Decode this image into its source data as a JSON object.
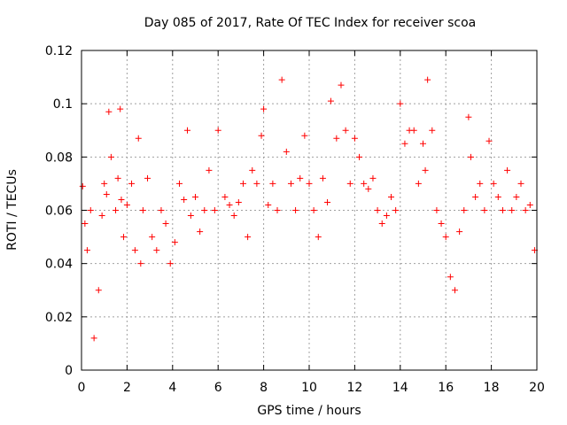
{
  "chart_data": {
    "type": "scatter",
    "title": "Day 085 of 2017, Rate Of TEC Index for receiver scoa",
    "xlabel": "GPS time / hours",
    "ylabel": "ROTI / TECUs",
    "xlim": [
      0,
      20
    ],
    "ylim": [
      0,
      0.12
    ],
    "xticks": [
      "0",
      "2",
      "4",
      "6",
      "8",
      "10",
      "12",
      "14",
      "16",
      "18",
      "20"
    ],
    "yticks": [
      "0",
      "0.02",
      "0.04",
      "0.06",
      "0.08",
      "0.1",
      "0.12"
    ],
    "grid": true,
    "marker": "+",
    "color": "#ff0000",
    "series": [
      {
        "x": [
          0.05,
          0.15,
          0.25,
          0.4,
          0.55,
          0.75,
          0.9,
          1.0,
          1.1,
          1.2,
          1.3,
          1.5,
          1.6,
          1.7,
          1.75,
          1.85,
          2.0,
          2.2,
          2.35,
          2.5,
          2.6,
          2.7,
          2.9,
          3.1,
          3.3,
          3.5,
          3.7,
          3.9,
          4.1,
          4.3,
          4.5,
          4.65,
          4.8,
          5.0,
          5.2,
          5.4,
          5.6,
          5.85,
          6.0,
          6.3,
          6.5,
          6.7,
          6.9,
          7.1,
          7.3,
          7.5,
          7.7,
          7.9,
          8.0,
          8.2,
          8.4,
          8.6,
          8.8,
          9.0,
          9.2,
          9.4,
          9.6,
          9.8,
          10.0,
          10.2,
          10.4,
          10.6,
          10.8,
          10.95,
          11.2,
          11.4,
          11.6,
          11.8,
          12.0,
          12.2,
          12.4,
          12.6,
          12.8,
          13.0,
          13.2,
          13.4,
          13.6,
          13.8,
          14.0,
          14.2,
          14.4,
          14.6,
          14.8,
          15.0,
          15.1,
          15.2,
          15.4,
          15.6,
          15.8,
          16.0,
          16.2,
          16.4,
          16.6,
          16.8,
          17.0,
          17.1,
          17.3,
          17.5,
          17.7,
          17.9,
          18.1,
          18.3,
          18.5,
          18.7,
          18.9,
          19.1,
          19.3,
          19.5,
          19.7,
          19.9
        ],
        "y": [
          0.069,
          0.055,
          0.045,
          0.06,
          0.012,
          0.03,
          0.058,
          0.07,
          0.066,
          0.097,
          0.08,
          0.06,
          0.072,
          0.098,
          0.064,
          0.05,
          0.062,
          0.07,
          0.045,
          0.087,
          0.04,
          0.06,
          0.072,
          0.05,
          0.045,
          0.06,
          0.055,
          0.04,
          0.048,
          0.07,
          0.064,
          0.09,
          0.058,
          0.065,
          0.052,
          0.06,
          0.075,
          0.06,
          0.09,
          0.065,
          0.062,
          0.058,
          0.063,
          0.07,
          0.05,
          0.075,
          0.07,
          0.088,
          0.098,
          0.062,
          0.07,
          0.06,
          0.109,
          0.082,
          0.07,
          0.06,
          0.072,
          0.088,
          0.07,
          0.06,
          0.05,
          0.072,
          0.063,
          0.101,
          0.087,
          0.107,
          0.09,
          0.07,
          0.087,
          0.08,
          0.07,
          0.068,
          0.072,
          0.06,
          0.055,
          0.058,
          0.065,
          0.06,
          0.1,
          0.085,
          0.09,
          0.09,
          0.07,
          0.085,
          0.075,
          0.109,
          0.09,
          0.06,
          0.055,
          0.05,
          0.035,
          0.03,
          0.052,
          0.06,
          0.095,
          0.08,
          0.065,
          0.07,
          0.06,
          0.086,
          0.07,
          0.065,
          0.06,
          0.075,
          0.06,
          0.065,
          0.07,
          0.06,
          0.062,
          0.045
        ]
      }
    ]
  }
}
